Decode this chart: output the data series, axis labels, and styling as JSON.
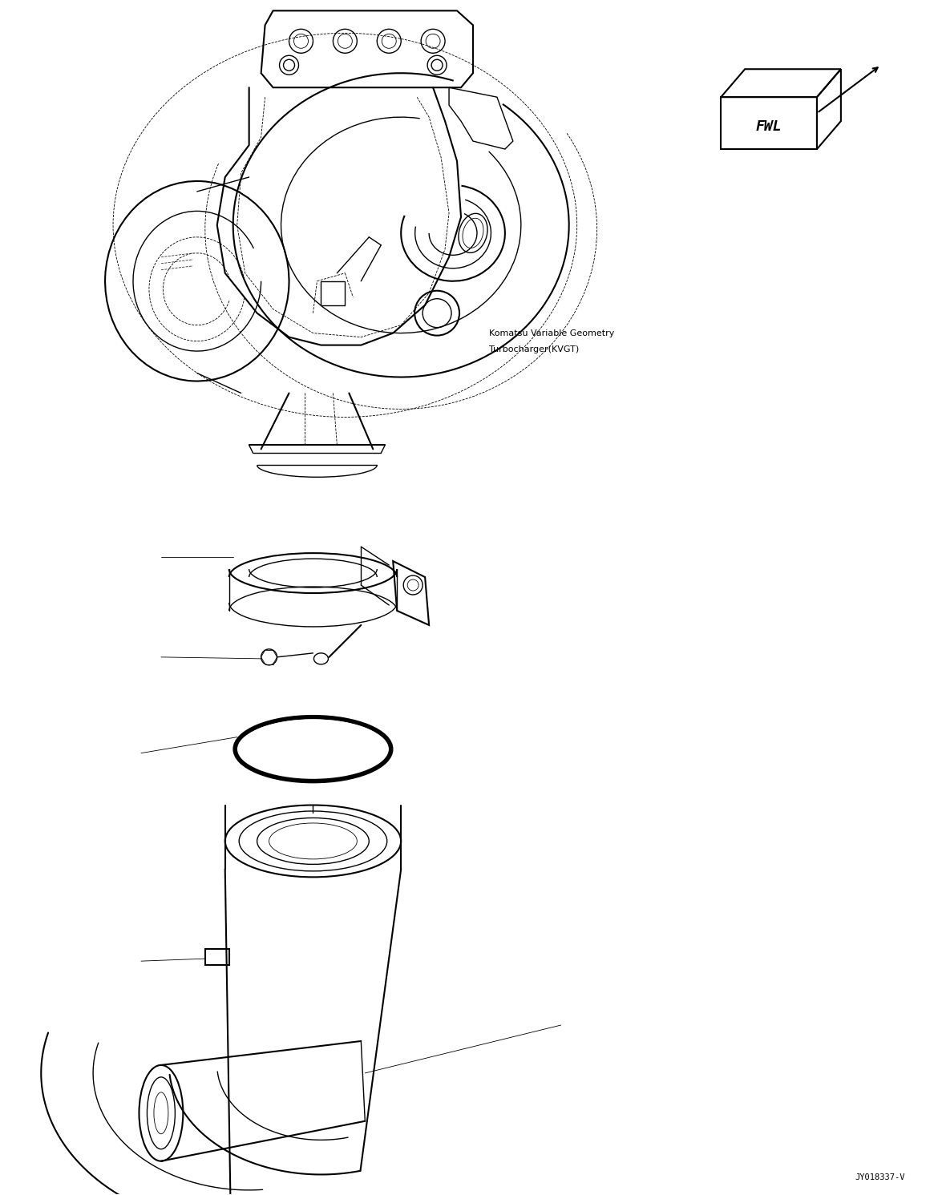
{
  "bg_color": "#ffffff",
  "line_color": "#000000",
  "figure_width": 11.65,
  "figure_height": 14.91,
  "dpi": 100,
  "kvgt_label_line1": "Komatsu Variable Geometry",
  "kvgt_label_line2": "Turbocharger(KVGT)",
  "diagram_id": "JY018337-V"
}
